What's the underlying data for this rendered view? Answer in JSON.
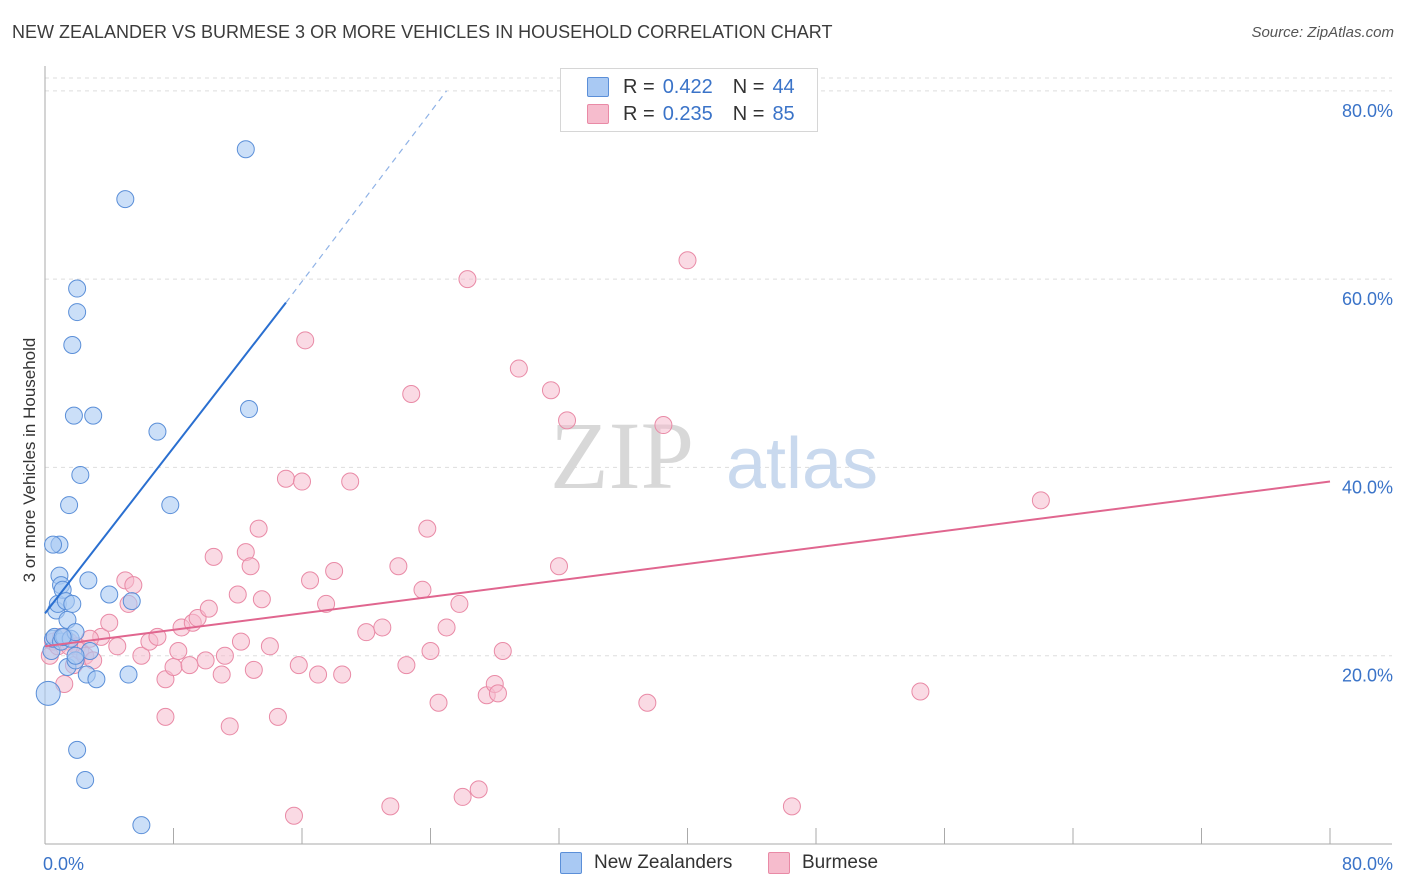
{
  "title": "NEW ZEALANDER VS BURMESE 3 OR MORE VEHICLES IN HOUSEHOLD CORRELATION CHART",
  "source": "Source: ZipAtlas.com",
  "watermark": {
    "zip": "ZIP",
    "atlas": "atlas"
  },
  "colors": {
    "blue_fill": "#a9c9f3",
    "blue_stroke": "#5b8fd8",
    "blue_line": "#2a6fd0",
    "pink_fill": "#f6bccd",
    "pink_stroke": "#e98aa6",
    "pink_line": "#e0668f",
    "axis_text": "#3a73c8",
    "grid": "#dddddd"
  },
  "legend": {
    "rows": [
      {
        "r_label": "R =",
        "r_value": "0.422",
        "n_label": "N =",
        "n_value": "44"
      },
      {
        "r_label": "R =",
        "r_value": "0.235",
        "n_label": "N =",
        "n_value": "85"
      }
    ]
  },
  "bottom_legend": [
    "New Zealanders",
    "Burmese"
  ],
  "chart_data": {
    "type": "scatter",
    "title": "NEW ZEALANDER VS BURMESE 3 OR MORE VEHICLES IN HOUSEHOLD CORRELATION CHART",
    "xlabel": "",
    "ylabel": "3 or more Vehicles in Household",
    "xlim": [
      0,
      80
    ],
    "ylim": [
      0,
      82
    ],
    "x_tick_labels": [
      "0.0%",
      "80.0%"
    ],
    "y_ticks": [
      20,
      40,
      60,
      80
    ],
    "y_tick_labels": [
      "20.0%",
      "40.0%",
      "60.0%",
      "80.0%"
    ],
    "grid": true,
    "legend_position": "top-center",
    "series": [
      {
        "name": "New Zealanders",
        "R": 0.422,
        "N": 44,
        "trend": {
          "x0": 0.0,
          "y0": 24.5,
          "x1": 15.0,
          "y1": 57.5,
          "dash_to_x": 25.0,
          "dash_to_y": 80.0
        },
        "points": [
          [
            0.2,
            16.0
          ],
          [
            0.4,
            20.5
          ],
          [
            0.5,
            21.8
          ],
          [
            0.6,
            22.0
          ],
          [
            0.7,
            24.8
          ],
          [
            0.8,
            25.5
          ],
          [
            0.9,
            28.5
          ],
          [
            0.9,
            31.8
          ],
          [
            1.0,
            27.5
          ],
          [
            1.0,
            21.5
          ],
          [
            1.1,
            27.0
          ],
          [
            1.2,
            22.0
          ],
          [
            1.3,
            25.8
          ],
          [
            1.4,
            18.8
          ],
          [
            1.4,
            23.8
          ],
          [
            1.5,
            36.0
          ],
          [
            1.6,
            21.8
          ],
          [
            1.7,
            53.0
          ],
          [
            1.7,
            25.5
          ],
          [
            1.8,
            45.5
          ],
          [
            1.9,
            22.5
          ],
          [
            1.9,
            19.5
          ],
          [
            2.0,
            10.0
          ],
          [
            2.0,
            59.0
          ],
          [
            2.0,
            56.5
          ],
          [
            2.2,
            39.2
          ],
          [
            2.5,
            6.8
          ],
          [
            2.6,
            18.0
          ],
          [
            2.7,
            28.0
          ],
          [
            2.8,
            20.5
          ],
          [
            3.0,
            45.5
          ],
          [
            3.2,
            17.5
          ],
          [
            4.0,
            26.5
          ],
          [
            5.0,
            68.5
          ],
          [
            5.2,
            18.0
          ],
          [
            5.4,
            25.8
          ],
          [
            6.0,
            2.0
          ],
          [
            7.0,
            43.8
          ],
          [
            7.8,
            36.0
          ],
          [
            12.5,
            73.8
          ],
          [
            12.7,
            46.2
          ],
          [
            0.5,
            31.8
          ],
          [
            1.1,
            22.0
          ],
          [
            1.9,
            20.0
          ]
        ]
      },
      {
        "name": "Burmese",
        "R": 0.235,
        "N": 85,
        "trend": {
          "x0": 0.0,
          "y0": 21.0,
          "x1": 80.0,
          "y1": 38.5
        },
        "points": [
          [
            0.3,
            20.0
          ],
          [
            0.5,
            21.5
          ],
          [
            0.8,
            21.0
          ],
          [
            1.0,
            22.0
          ],
          [
            1.2,
            17.0
          ],
          [
            1.5,
            21.5
          ],
          [
            1.8,
            19.0
          ],
          [
            2.0,
            21.0
          ],
          [
            2.2,
            20.5
          ],
          [
            2.5,
            20.0
          ],
          [
            3.0,
            19.5
          ],
          [
            3.5,
            22.0
          ],
          [
            4.0,
            23.5
          ],
          [
            4.5,
            21.0
          ],
          [
            5.0,
            28.0
          ],
          [
            5.2,
            25.5
          ],
          [
            5.5,
            27.5
          ],
          [
            6.0,
            20.0
          ],
          [
            6.5,
            21.5
          ],
          [
            7.0,
            22.0
          ],
          [
            7.5,
            13.5
          ],
          [
            7.5,
            17.5
          ],
          [
            8.0,
            18.8
          ],
          [
            8.3,
            20.5
          ],
          [
            8.5,
            23.0
          ],
          [
            9.0,
            19.0
          ],
          [
            9.2,
            23.5
          ],
          [
            9.5,
            24.0
          ],
          [
            10.0,
            19.5
          ],
          [
            10.2,
            25.0
          ],
          [
            10.5,
            30.5
          ],
          [
            11.0,
            18.0
          ],
          [
            11.2,
            20.0
          ],
          [
            11.5,
            12.5
          ],
          [
            12.0,
            26.5
          ],
          [
            12.2,
            21.5
          ],
          [
            12.5,
            31.0
          ],
          [
            12.8,
            29.5
          ],
          [
            13.0,
            18.5
          ],
          [
            13.3,
            33.5
          ],
          [
            13.5,
            26.0
          ],
          [
            14.0,
            21.0
          ],
          [
            14.5,
            13.5
          ],
          [
            15.0,
            38.8
          ],
          [
            15.5,
            3.0
          ],
          [
            15.8,
            19.0
          ],
          [
            16.0,
            38.5
          ],
          [
            16.2,
            53.5
          ],
          [
            16.5,
            28.0
          ],
          [
            17.0,
            18.0
          ],
          [
            17.5,
            25.5
          ],
          [
            18.0,
            29.0
          ],
          [
            18.5,
            18.0
          ],
          [
            19.0,
            38.5
          ],
          [
            20.0,
            22.5
          ],
          [
            21.0,
            23.0
          ],
          [
            21.5,
            4.0
          ],
          [
            22.0,
            29.5
          ],
          [
            22.5,
            19.0
          ],
          [
            22.8,
            47.8
          ],
          [
            23.5,
            27.0
          ],
          [
            23.8,
            33.5
          ],
          [
            24.0,
            20.5
          ],
          [
            24.5,
            15.0
          ],
          [
            25.0,
            23.0
          ],
          [
            25.8,
            25.5
          ],
          [
            26.0,
            5.0
          ],
          [
            26.3,
            60.0
          ],
          [
            27.0,
            5.8
          ],
          [
            27.5,
            15.8
          ],
          [
            28.0,
            17.0
          ],
          [
            28.2,
            16.0
          ],
          [
            28.5,
            20.5
          ],
          [
            29.5,
            50.5
          ],
          [
            31.5,
            48.2
          ],
          [
            32.0,
            29.5
          ],
          [
            32.5,
            45.0
          ],
          [
            37.5,
            15.0
          ],
          [
            38.5,
            44.5
          ],
          [
            40.0,
            62.0
          ],
          [
            46.5,
            4.0
          ],
          [
            54.5,
            16.2
          ],
          [
            62.0,
            36.5
          ],
          [
            1.5,
            21.0
          ],
          [
            2.8,
            21.8
          ]
        ]
      }
    ]
  }
}
